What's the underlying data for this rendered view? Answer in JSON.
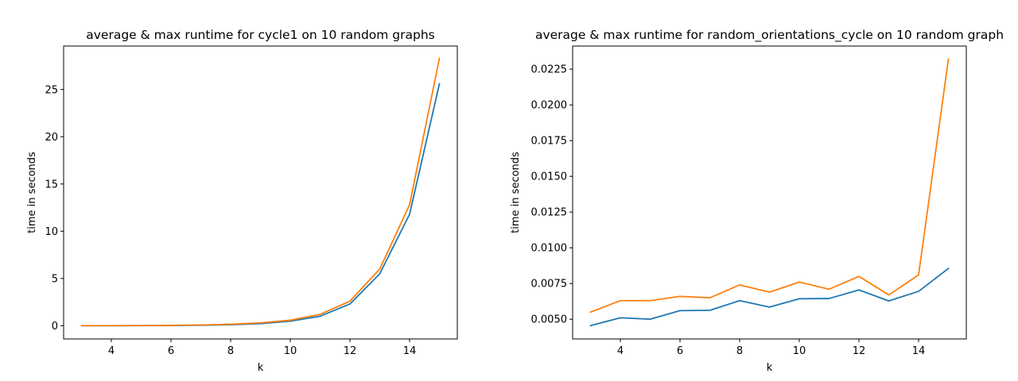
{
  "colors": {
    "avg": "#1f77b4",
    "max": "#ff7f0e"
  },
  "chart_data": [
    {
      "type": "line",
      "title": "average & max runtime for cycle1 on 10 random graphs",
      "xlabel": "k",
      "ylabel": "time in seconds",
      "x": [
        3,
        4,
        5,
        6,
        7,
        8,
        9,
        10,
        11,
        12,
        13,
        14,
        15
      ],
      "xlim": [
        2.4,
        15.6
      ],
      "ylim": [
        -1.4,
        29.6
      ],
      "xticks": [
        4,
        6,
        8,
        10,
        12,
        14
      ],
      "yticks": [
        0,
        5,
        10,
        15,
        20,
        25
      ],
      "ytick_labels": [
        "0",
        "5",
        "10",
        "15",
        "20",
        "25"
      ],
      "series": [
        {
          "values": [
            0.0,
            0.0,
            0.01,
            0.02,
            0.05,
            0.1,
            0.22,
            0.48,
            1.0,
            2.3,
            5.5,
            11.8,
            25.6
          ]
        },
        {
          "values": [
            0.01,
            0.01,
            0.02,
            0.04,
            0.08,
            0.15,
            0.3,
            0.58,
            1.2,
            2.6,
            6.0,
            12.8,
            28.3
          ]
        }
      ]
    },
    {
      "type": "line",
      "title": "average & max runtime for random_orientations_cycle on 10 random graph",
      "xlabel": "k",
      "ylabel": "time in seconds",
      "x": [
        3,
        4,
        5,
        6,
        7,
        8,
        9,
        10,
        11,
        12,
        13,
        14,
        15
      ],
      "xlim": [
        2.4,
        15.6
      ],
      "ylim": [
        0.00362,
        0.02412
      ],
      "xticks": [
        4,
        6,
        8,
        10,
        12,
        14
      ],
      "yticks": [
        0.005,
        0.0075,
        0.01,
        0.0125,
        0.015,
        0.0175,
        0.02,
        0.0225
      ],
      "ytick_labels": [
        "0.0050",
        "0.0075",
        "0.0100",
        "0.0125",
        "0.0150",
        "0.0175",
        "0.0200",
        "0.0225"
      ],
      "series": [
        {
          "values": [
            0.00455,
            0.0051,
            0.005,
            0.0056,
            0.00562,
            0.0063,
            0.00585,
            0.00643,
            0.00645,
            0.00705,
            0.00628,
            0.00695,
            0.00855
          ]
        },
        {
          "values": [
            0.0055,
            0.0063,
            0.0063,
            0.0066,
            0.0065,
            0.0074,
            0.0069,
            0.0076,
            0.0071,
            0.008,
            0.0067,
            0.0081,
            0.0232
          ]
        }
      ]
    }
  ]
}
